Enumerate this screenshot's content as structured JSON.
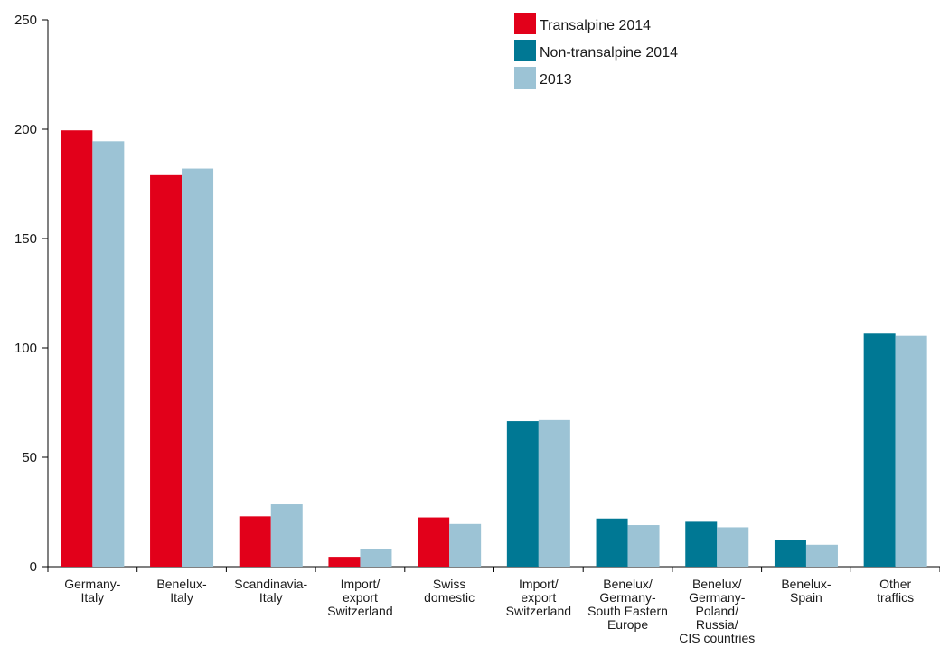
{
  "chart_data": {
    "type": "bar",
    "title": "",
    "xlabel": "",
    "ylabel": "",
    "ylim": [
      0,
      250
    ],
    "yticks": [
      0,
      50,
      100,
      150,
      200,
      250
    ],
    "grid": false,
    "legend_position": "top-right",
    "categories": [
      [
        "Germany-",
        "Italy"
      ],
      [
        "Benelux-",
        "Italy"
      ],
      [
        "Scandinavia-",
        "Italy"
      ],
      [
        "Import/",
        "export",
        "Switzerland"
      ],
      [
        "Swiss",
        "domestic"
      ],
      [
        "Import/",
        "export",
        "Switzerland"
      ],
      [
        "Benelux/",
        "Germany-",
        "South Eastern",
        "Europe"
      ],
      [
        "Benelux/",
        "Germany-",
        "Poland/",
        "Russia/",
        "CIS countries"
      ],
      [
        "Benelux-",
        "Spain"
      ],
      [
        "Other",
        "traffics"
      ]
    ],
    "series": [
      {
        "name": "Transalpine 2014",
        "color": "#e2001a",
        "values": [
          199.5,
          179,
          23,
          4.5,
          22.5,
          null,
          null,
          null,
          null,
          null
        ]
      },
      {
        "name": "Non-transalpine 2014",
        "color": "#007894",
        "values": [
          null,
          null,
          null,
          null,
          null,
          66.5,
          22,
          20.5,
          12,
          106.5
        ]
      },
      {
        "name": "2013",
        "color": "#9cc3d5",
        "values": [
          194.5,
          182,
          28.5,
          8,
          19.5,
          67,
          19,
          18,
          10,
          105.5
        ]
      }
    ]
  }
}
